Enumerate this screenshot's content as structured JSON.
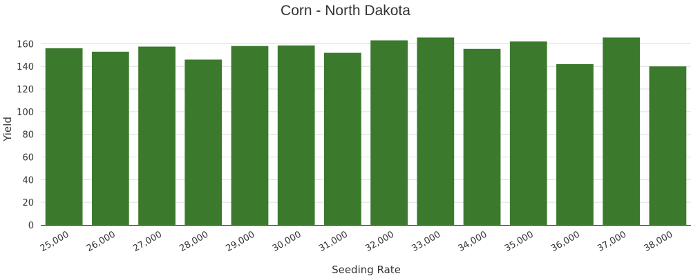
{
  "chart_data": {
    "type": "bar",
    "title": "Corn - North Dakota",
    "xlabel": "Seeding Rate",
    "ylabel": "Yield",
    "categories": [
      "25,000",
      "26,000",
      "27,000",
      "28,000",
      "29,000",
      "30,000",
      "31,000",
      "32,000",
      "33,000",
      "34,000",
      "35,000",
      "36,000",
      "37,000",
      "38,000"
    ],
    "values": [
      156,
      153,
      157.5,
      146,
      158,
      158.5,
      152,
      163,
      165.5,
      155.5,
      162,
      142,
      165.5,
      140
    ],
    "ylim": [
      0,
      170
    ],
    "yticks": [
      0,
      20,
      40,
      60,
      80,
      100,
      120,
      140,
      160
    ],
    "grid": true,
    "legend": "none",
    "bar_color": "#3b7a2c"
  }
}
